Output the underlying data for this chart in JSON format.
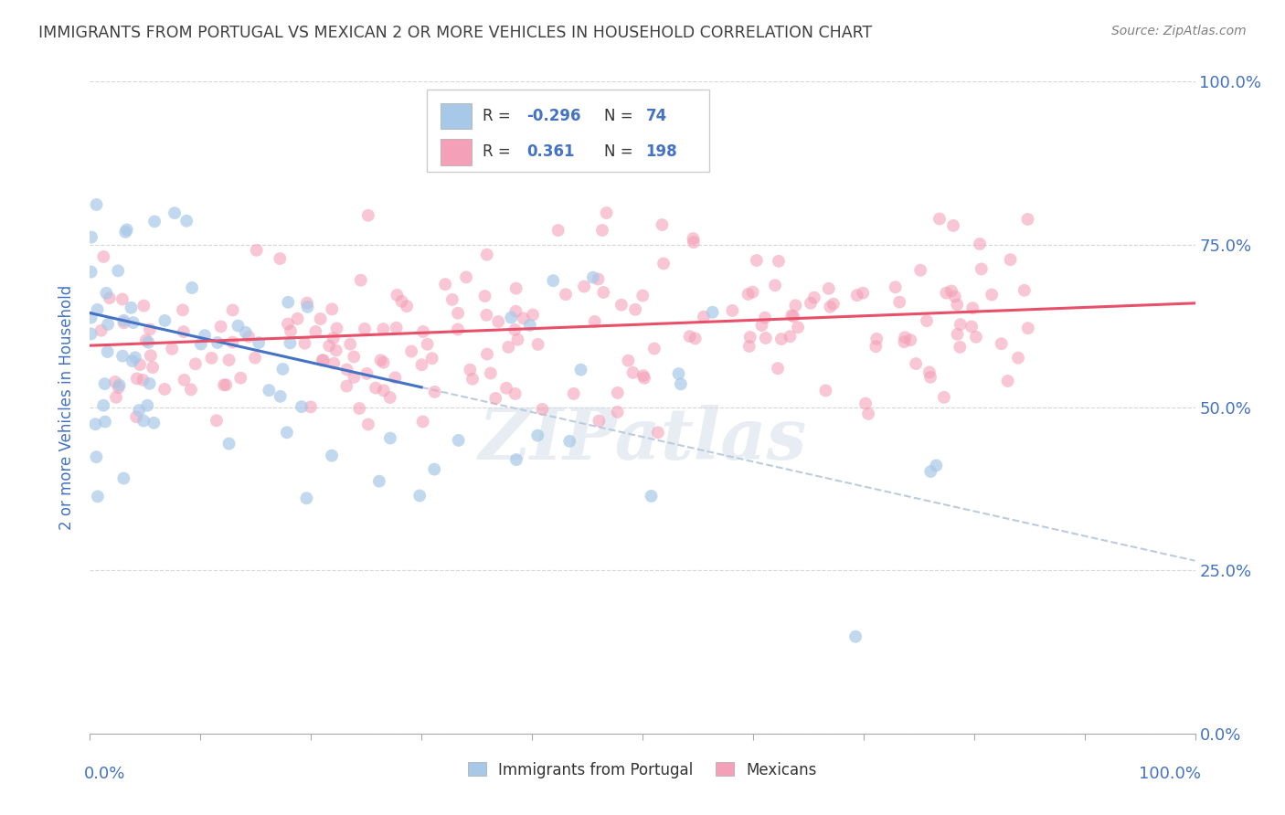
{
  "title": "IMMIGRANTS FROM PORTUGAL VS MEXICAN 2 OR MORE VEHICLES IN HOUSEHOLD CORRELATION CHART",
  "source": "Source: ZipAtlas.com",
  "ylabel": "2 or more Vehicles in Household",
  "watermark": "ZIPatlas",
  "legend_label_1": "Immigrants from Portugal",
  "legend_label_2": "Mexicans",
  "R1": -0.296,
  "N1": 74,
  "R2": 0.361,
  "N2": 198,
  "color1": "#a8c8e8",
  "color2": "#f4a0b8",
  "trend1_color": "#4472c4",
  "trend2_color": "#e8506a",
  "dash_color": "#bbccdd",
  "bg_color": "#ffffff",
  "grid_color": "#cccccc",
  "title_color": "#404040",
  "axis_label_color": "#4472c4",
  "xlim": [
    0.0,
    1.0
  ],
  "ylim": [
    0.0,
    1.0
  ],
  "portugal_intercept": 0.645,
  "portugal_slope": -0.38,
  "mexico_intercept": 0.595,
  "mexico_slope": 0.065,
  "seed1": 12,
  "seed2": 77
}
